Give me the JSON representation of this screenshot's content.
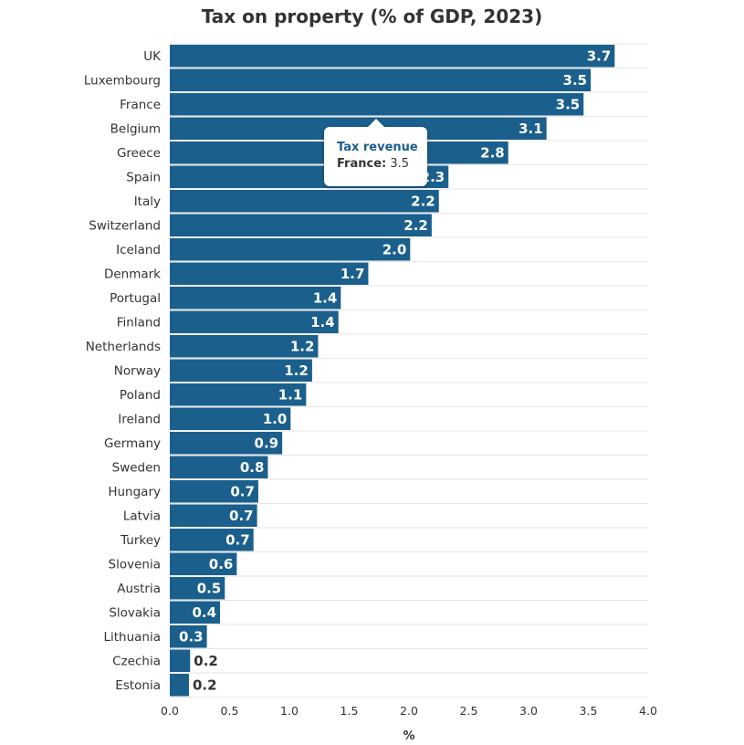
{
  "chart_data": {
    "type": "bar",
    "orientation": "horizontal",
    "title": "Tax on property (% of GDP, 2023)",
    "xlabel": "%",
    "ylabel": "",
    "xlim": [
      0,
      4
    ],
    "xticks": [
      "0.0",
      "0.5",
      "1.0",
      "1.5",
      "2.0",
      "2.5",
      "3.0",
      "3.5",
      "4.0"
    ],
    "grid": true,
    "bar_color": "#1b5f8c",
    "categories": [
      "UK",
      "Luxembourg",
      "France",
      "Belgium",
      "Greece",
      "Spain",
      "Italy",
      "Switzerland",
      "Iceland",
      "Denmark",
      "Portugal",
      "Finland",
      "Netherlands",
      "Norway",
      "Poland",
      "Ireland",
      "Germany",
      "Sweden",
      "Hungary",
      "Latvia",
      "Turkey",
      "Slovenia",
      "Austria",
      "Slovakia",
      "Lithuania",
      "Czechia",
      "Estonia"
    ],
    "values": [
      3.72,
      3.52,
      3.46,
      3.15,
      2.83,
      2.33,
      2.25,
      2.19,
      2.01,
      1.66,
      1.43,
      1.41,
      1.24,
      1.19,
      1.14,
      1.01,
      0.94,
      0.82,
      0.74,
      0.73,
      0.7,
      0.56,
      0.46,
      0.42,
      0.31,
      0.17,
      0.16
    ],
    "data_labels": [
      "3.7",
      "3.5",
      "3.5",
      "3.1",
      "2.8",
      "2.3",
      "2.2",
      "2.2",
      "2.0",
      "1.7",
      "1.4",
      "1.4",
      "1.2",
      "1.2",
      "1.1",
      "1.0",
      "0.9",
      "0.8",
      "0.7",
      "0.7",
      "0.7",
      "0.6",
      "0.5",
      "0.4",
      "0.3",
      "0.2",
      "0.2"
    ],
    "series": [
      {
        "values": [
          3.72,
          3.52,
          3.46,
          3.15,
          2.83,
          2.33,
          2.25,
          2.19,
          2.01,
          1.66,
          1.43,
          1.41,
          1.24,
          1.19,
          1.14,
          1.01,
          0.94,
          0.82,
          0.74,
          0.73,
          0.7,
          0.56,
          0.46,
          0.42,
          0.31,
          0.17,
          0.16
        ]
      }
    ]
  },
  "tooltip": {
    "title": "Tax revenue",
    "key": "France:",
    "value": "3.5"
  }
}
